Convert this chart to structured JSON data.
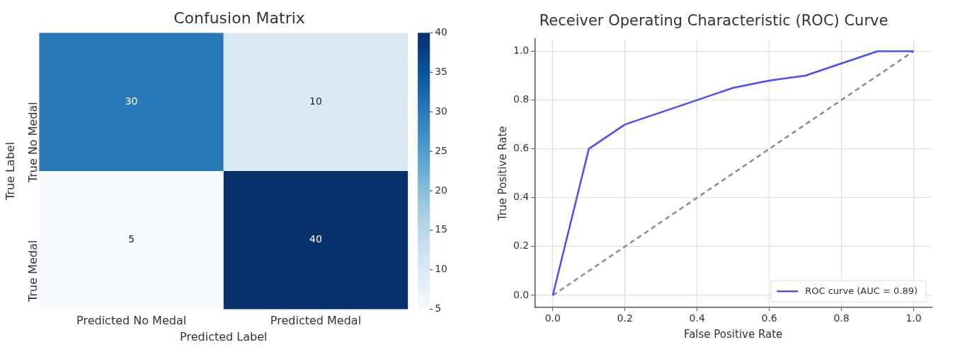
{
  "chart_data": [
    {
      "type": "heatmap",
      "title": "Confusion Matrix",
      "xlabel": "Predicted Label",
      "ylabel": "True Label",
      "categories": [
        "Predicted No Medal",
        "Predicted Medal"
      ],
      "y_categories": [
        "True No Medal",
        "True Medal"
      ],
      "cells": [
        [
          30,
          10
        ],
        [
          5,
          40
        ]
      ],
      "clim": [
        5,
        40
      ],
      "cticks": [
        5,
        10,
        15,
        20,
        25,
        30,
        35,
        40
      ],
      "data_labels": true
    },
    {
      "type": "line",
      "title": "Receiver Operating Characteristic (ROC) Curve",
      "xlabel": "False Positive Rate",
      "ylabel": "True Positive Rate",
      "series": [
        {
          "name": "ROC curve (AUC = 0.89)",
          "color": "#4b4bff",
          "x": [
            0,
            0.1,
            0.2,
            0.4,
            0.5,
            0.6,
            0.7,
            0.9,
            1.0
          ],
          "values": [
            0,
            0.6,
            0.7,
            0.8,
            0.85,
            0.88,
            0.9,
            1.0,
            1.0
          ]
        },
        {
          "color": "#8c8c8c",
          "line_style": "dashed",
          "x": [
            0,
            1
          ],
          "values": [
            0,
            1
          ]
        }
      ],
      "xlim": [
        -0.05,
        1.05
      ],
      "ylim": [
        -0.05,
        1.05
      ],
      "xticks": [
        {
          "value": 0,
          "label": "0.0"
        },
        {
          "value": 0.2,
          "label": "0.2"
        },
        {
          "value": 0.4,
          "label": "0.4"
        },
        {
          "value": 0.6,
          "label": "0.6"
        },
        {
          "value": 0.8,
          "label": "0.8"
        },
        {
          "value": 1,
          "label": "1.0"
        }
      ],
      "yticks": [
        {
          "value": 0,
          "label": "0.0"
        },
        {
          "value": 0.2,
          "label": "0.2"
        },
        {
          "value": 0.4,
          "label": "0.4"
        },
        {
          "value": 0.6,
          "label": "0.6"
        },
        {
          "value": 0.8,
          "label": "0.8"
        },
        {
          "value": 1,
          "label": "1.0"
        }
      ],
      "grid": true,
      "legend": "bottom right",
      "line_style": "solid",
      "marker": "none"
    }
  ]
}
